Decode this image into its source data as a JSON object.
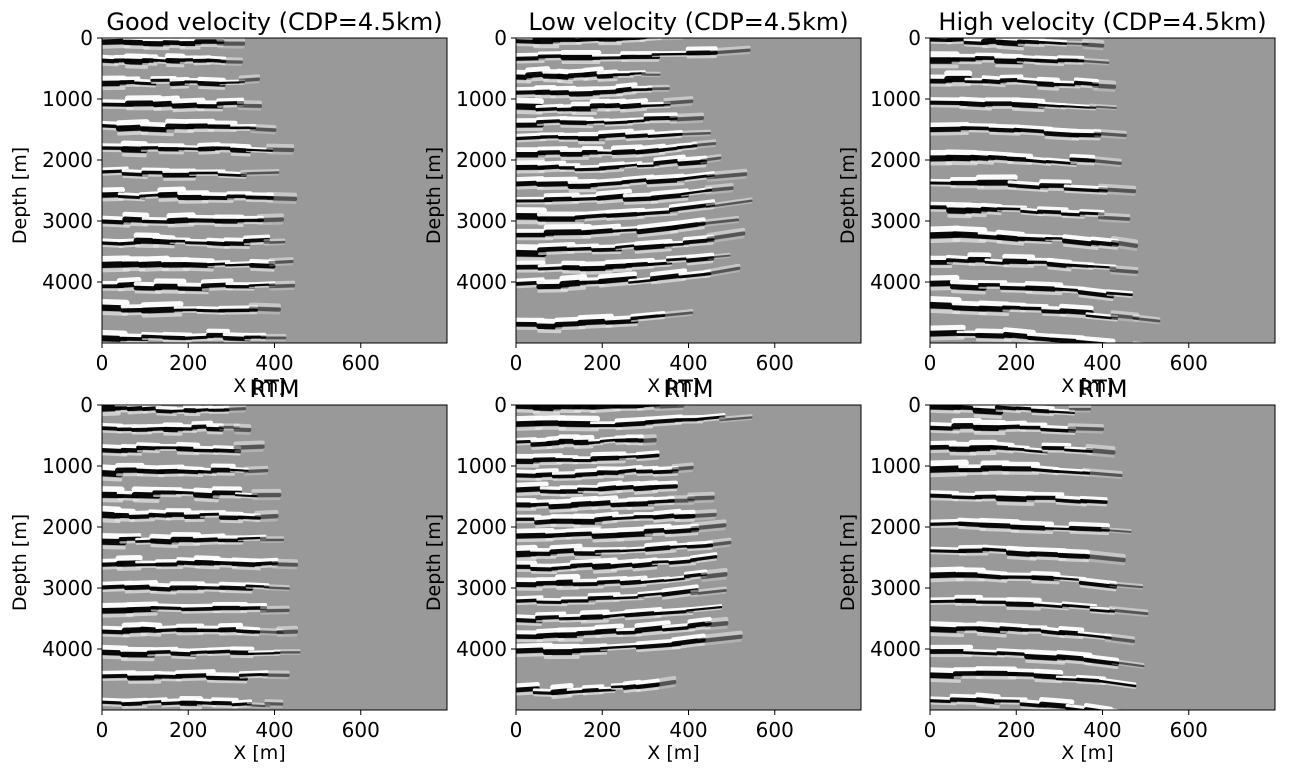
{
  "figure": {
    "panels": [
      {
        "title": "Good velocity (CDP=4.5km)",
        "xlabel": "X [m]",
        "ylabel": "Depth [m]",
        "row": 0,
        "col": 0,
        "pattern": "good"
      },
      {
        "title": "Low velocity (CDP=4.5km)",
        "xlabel": "X [m]",
        "ylabel": "Depth [m]",
        "row": 0,
        "col": 1,
        "pattern": "low"
      },
      {
        "title": "High velocity (CDP=4.5km)",
        "xlabel": "X [m]",
        "ylabel": "Depth [m]",
        "row": 0,
        "col": 2,
        "pattern": "high"
      },
      {
        "title": "RTM",
        "xlabel": "X [m]",
        "ylabel": "Depth [m]",
        "row": 1,
        "col": 0,
        "pattern": "good"
      },
      {
        "title": "RTM",
        "xlabel": "X [m]",
        "ylabel": "Depth [m]",
        "row": 1,
        "col": 1,
        "pattern": "low"
      },
      {
        "title": "RTM",
        "xlabel": "X [m]",
        "ylabel": "Depth [m]",
        "row": 1,
        "col": 2,
        "pattern": "high"
      }
    ],
    "xticks": [
      0,
      200,
      400,
      600
    ],
    "yticks": [
      0,
      1000,
      2000,
      3000,
      4000
    ],
    "xlim": [
      0,
      800
    ],
    "ylim": [
      5000,
      0
    ],
    "colormap": "gray",
    "background_color": "#999999"
  },
  "chart_data": [
    {
      "type": "heatmap",
      "title": "Good velocity (CDP=4.5km)",
      "xlabel": "X [m]",
      "ylabel": "Depth [m]",
      "xlim": [
        0,
        800
      ],
      "ylim": [
        5000,
        0
      ],
      "reflector_depths": [
        80,
        380,
        720,
        1090,
        1460,
        1820,
        2220,
        2600,
        2980,
        3350,
        3700,
        4080,
        4450,
        4900
      ],
      "event_max_x": [
        350,
        360,
        400,
        420,
        450,
        470,
        470,
        480,
        480,
        490,
        490,
        490,
        480,
        450
      ]
    },
    {
      "type": "heatmap",
      "title": "Low velocity (CDP=4.5km)",
      "xlabel": "X [m]",
      "ylabel": "Depth [m]",
      "xlim": [
        0,
        800
      ],
      "ylim": [
        5000,
        0
      ],
      "reflector_depths": [
        40,
        320,
        620,
        900,
        1150,
        1400,
        1650,
        1900,
        2150,
        2420,
        2680,
        2950,
        3220,
        3500,
        3780,
        4050,
        4700
      ],
      "event_max_x": [
        450,
        600,
        360,
        400,
        440,
        460,
        480,
        500,
        520,
        540,
        550,
        560,
        570,
        570,
        570,
        560,
        420
      ]
    },
    {
      "type": "heatmap",
      "title": "High velocity (CDP=4.5km)",
      "xlabel": "X [m]",
      "ylabel": "Depth [m]",
      "xlim": [
        0,
        800
      ],
      "ylim": [
        5000,
        0
      ],
      "reflector_depths": [
        60,
        350,
        700,
        1050,
        1500,
        1950,
        2380,
        2800,
        3230,
        3650,
        4050,
        4400,
        4850
      ],
      "event_max_x": [
        420,
        460,
        470,
        480,
        490,
        500,
        510,
        520,
        530,
        540,
        550,
        560,
        570
      ]
    },
    {
      "type": "heatmap",
      "title": "RTM",
      "xlabel": "X [m]",
      "ylabel": "Depth [m]",
      "xlim": [
        0,
        800
      ],
      "ylim": [
        5000,
        0
      ],
      "reflector_depths": [
        80,
        380,
        720,
        1090,
        1460,
        1820,
        2220,
        2600,
        2980,
        3350,
        3700,
        4080,
        4450,
        4900
      ],
      "event_max_x": [
        350,
        360,
        400,
        420,
        450,
        470,
        470,
        480,
        480,
        490,
        490,
        490,
        480,
        450
      ]
    },
    {
      "type": "heatmap",
      "title": "RTM",
      "xlabel": "X [m]",
      "ylabel": "Depth [m]",
      "xlim": [
        0,
        800
      ],
      "ylim": [
        5000,
        0
      ],
      "reflector_depths": [
        40,
        320,
        620,
        900,
        1150,
        1400,
        1650,
        1900,
        2150,
        2420,
        2680,
        2950,
        3220,
        3500,
        3780,
        4050,
        4700
      ],
      "event_max_x": [
        450,
        600,
        360,
        400,
        440,
        460,
        480,
        500,
        520,
        540,
        550,
        560,
        570,
        570,
        570,
        560,
        420
      ]
    },
    {
      "type": "heatmap",
      "title": "RTM",
      "xlabel": "X [m]",
      "ylabel": "Depth [m]",
      "xlim": [
        0,
        800
      ],
      "ylim": [
        5000,
        0
      ],
      "reflector_depths": [
        60,
        350,
        700,
        1050,
        1500,
        1950,
        2380,
        2800,
        3230,
        3650,
        4050,
        4400,
        4850
      ],
      "event_max_x": [
        420,
        460,
        470,
        480,
        490,
        500,
        510,
        520,
        530,
        540,
        550,
        560,
        570
      ]
    }
  ]
}
